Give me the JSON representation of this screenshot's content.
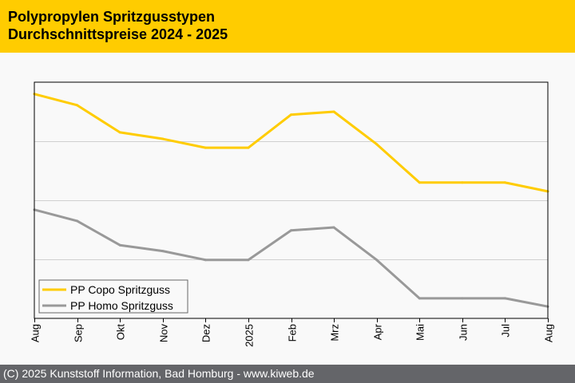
{
  "header": {
    "title_line1": "Polypropylen Spritzgusstypen",
    "title_line2": "Durchschnittspreise 2024 - 2025",
    "background": "#ffcc00"
  },
  "footer": {
    "text": "(C) 2025 Kunststoff Information, Bad Homburg - www.kiweb.de",
    "background": "#646569"
  },
  "chart_data": {
    "type": "line",
    "title": "Polypropylen Spritzgusstypen Durchschnittspreise 2024 - 2025",
    "xlabel": "",
    "ylabel": "",
    "categories": [
      "Aug",
      "Sep",
      "Okt",
      "Nov",
      "Dez",
      "2025",
      "Feb",
      "Mrz",
      "Apr",
      "Mai",
      "Jun",
      "Jul",
      "Aug"
    ],
    "ylim": [
      0,
      4
    ],
    "y_gridlines": [
      1,
      2,
      3
    ],
    "y_units": "relative index (no y-axis labels shown)",
    "grid": true,
    "legend_position": "bottom-left",
    "series": [
      {
        "name": "PP Copo Spritzguss",
        "color": "#ffcc00",
        "values": [
          3.8,
          3.61,
          3.15,
          3.04,
          2.89,
          2.89,
          3.45,
          3.5,
          2.95,
          2.3,
          2.3,
          2.3,
          2.15
        ]
      },
      {
        "name": "PP Homo Spritzguss",
        "color": "#999999",
        "values": [
          1.84,
          1.65,
          1.24,
          1.14,
          0.99,
          0.99,
          1.49,
          1.54,
          0.99,
          0.34,
          0.34,
          0.34,
          0.2
        ]
      }
    ]
  }
}
